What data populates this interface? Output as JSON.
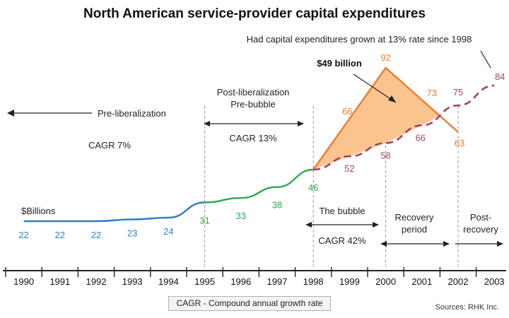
{
  "chart_data": {
    "type": "line",
    "title": "North American service-provider capital expenditures",
    "unit_label": "$Billions",
    "categories": [
      "1990",
      "1991",
      "1992",
      "1993",
      "1994",
      "1995",
      "1996",
      "1997",
      "1998",
      "1999",
      "2000",
      "2001",
      "2002",
      "2003"
    ],
    "series": [
      {
        "name": "Pre-liberalization",
        "color": "#2a7fc9",
        "x": [
          1990,
          1991,
          1992,
          1993,
          1994,
          1995
        ],
        "values": [
          22,
          22,
          22,
          23,
          24,
          31
        ],
        "labeled": [
          1990,
          1991,
          1992,
          1993,
          1994
        ]
      },
      {
        "name": "Post-liberalization Pre-bubble",
        "color": "#2fa84f",
        "x": [
          1995,
          1996,
          1997,
          1998
        ],
        "values": [
          31,
          33,
          38,
          46
        ],
        "labeled": [
          1995,
          1996,
          1997,
          1998
        ]
      },
      {
        "name": "The bubble",
        "color": "#f07a2e",
        "x": [
          1998,
          2000,
          2002
        ],
        "values": [
          46,
          92,
          63
        ],
        "labeled": [
          2000,
          2002
        ]
      },
      {
        "name": "Had capital expenditures grown at 13% rate since 1998",
        "color": "#a0436e",
        "dashed": true,
        "x": [
          1998,
          1999,
          2000,
          2001,
          2002,
          2003
        ],
        "values": [
          46,
          52,
          58,
          66,
          75,
          84
        ],
        "labeled": [
          1999,
          2000,
          2001,
          2002,
          2003
        ]
      }
    ],
    "extra_labels": {
      "bubble_1999": "66",
      "bubble_2001": "73"
    },
    "bubble_area_label": "$49 billion",
    "annotations": {
      "projection": "Had capital expenditures grown at 13% rate since 1998",
      "pre_lib": "Pre-liberalization",
      "cagr_7": "CAGR 7%",
      "post_lib_1": "Post-liberalization",
      "post_lib_2": "Pre-bubble",
      "cagr_13": "CAGR 13%",
      "bubble": "The bubble",
      "cagr_42": "CAGR 42%",
      "recovery_1": "Recovery",
      "recovery_2": "period",
      "post_recovery_1": "Post-",
      "post_recovery_2": "recovery"
    },
    "colors": {
      "fill": "#fbc48f",
      "dashed_grid": "#999999",
      "axis": "#222222"
    }
  },
  "legend": "CAGR - Compound annual growth rate",
  "source": "Sources: RHK Inc."
}
